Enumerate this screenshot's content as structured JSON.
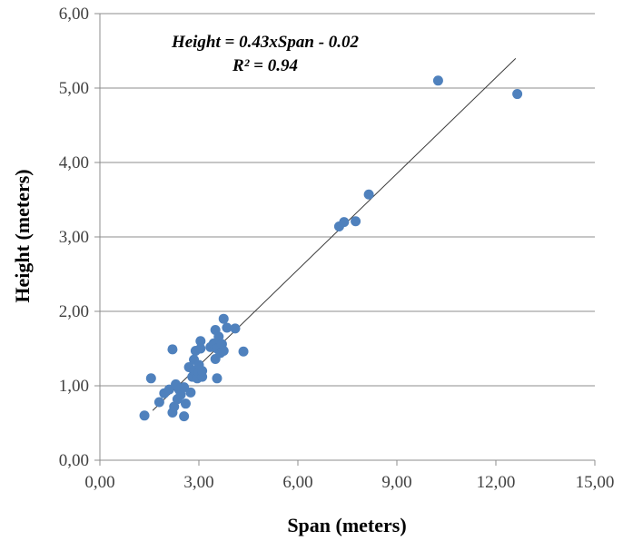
{
  "chart_data": {
    "type": "scatter",
    "xlabel": "Span (meters)",
    "ylabel": "Height (meters)",
    "xlim": [
      0,
      15
    ],
    "ylim": [
      0,
      6
    ],
    "x_ticks": [
      "0,00",
      "3,00",
      "6,00",
      "9,00",
      "12,00",
      "15,00"
    ],
    "y_ticks": [
      "0,00",
      "1,00",
      "2,00",
      "3,00",
      "4,00",
      "5,00",
      "6,00"
    ],
    "grid": "horizontal",
    "marker_color": "#4f81bd",
    "annotations": {
      "equation": "Height = 0.43xSpan - 0.02",
      "r_squared": "R² = 0.94"
    },
    "trendline": {
      "slope": 0.43,
      "intercept": -0.02,
      "x_range": [
        1.6,
        12.6
      ]
    },
    "points": [
      {
        "x": 1.35,
        "y": 0.6
      },
      {
        "x": 1.55,
        "y": 1.1
      },
      {
        "x": 1.8,
        "y": 0.78
      },
      {
        "x": 1.95,
        "y": 0.9
      },
      {
        "x": 2.1,
        "y": 0.95
      },
      {
        "x": 2.2,
        "y": 0.64
      },
      {
        "x": 2.25,
        "y": 0.72
      },
      {
        "x": 2.2,
        "y": 1.49
      },
      {
        "x": 2.3,
        "y": 1.02
      },
      {
        "x": 2.35,
        "y": 0.82
      },
      {
        "x": 2.4,
        "y": 0.95
      },
      {
        "x": 2.45,
        "y": 0.88
      },
      {
        "x": 2.55,
        "y": 0.59
      },
      {
        "x": 2.55,
        "y": 0.98
      },
      {
        "x": 2.6,
        "y": 0.76
      },
      {
        "x": 2.7,
        "y": 1.25
      },
      {
        "x": 2.75,
        "y": 0.91
      },
      {
        "x": 2.8,
        "y": 1.12
      },
      {
        "x": 2.85,
        "y": 1.2
      },
      {
        "x": 2.85,
        "y": 1.35
      },
      {
        "x": 2.9,
        "y": 1.47
      },
      {
        "x": 2.95,
        "y": 1.1
      },
      {
        "x": 3.0,
        "y": 1.18
      },
      {
        "x": 3.0,
        "y": 1.28
      },
      {
        "x": 3.05,
        "y": 1.5
      },
      {
        "x": 3.05,
        "y": 1.6
      },
      {
        "x": 3.1,
        "y": 1.12
      },
      {
        "x": 3.1,
        "y": 1.2
      },
      {
        "x": 3.35,
        "y": 1.52
      },
      {
        "x": 3.45,
        "y": 1.57
      },
      {
        "x": 3.5,
        "y": 1.36
      },
      {
        "x": 3.5,
        "y": 1.75
      },
      {
        "x": 3.55,
        "y": 1.1
      },
      {
        "x": 3.55,
        "y": 1.5
      },
      {
        "x": 3.6,
        "y": 1.66
      },
      {
        "x": 3.65,
        "y": 1.44
      },
      {
        "x": 3.7,
        "y": 1.56
      },
      {
        "x": 3.75,
        "y": 1.47
      },
      {
        "x": 3.75,
        "y": 1.9
      },
      {
        "x": 3.85,
        "y": 1.78
      },
      {
        "x": 4.1,
        "y": 1.77
      },
      {
        "x": 4.35,
        "y": 1.46
      },
      {
        "x": 7.25,
        "y": 3.14
      },
      {
        "x": 7.4,
        "y": 3.2
      },
      {
        "x": 7.75,
        "y": 3.21
      },
      {
        "x": 8.15,
        "y": 3.57
      },
      {
        "x": 10.25,
        "y": 5.1
      },
      {
        "x": 12.65,
        "y": 4.92
      }
    ]
  }
}
